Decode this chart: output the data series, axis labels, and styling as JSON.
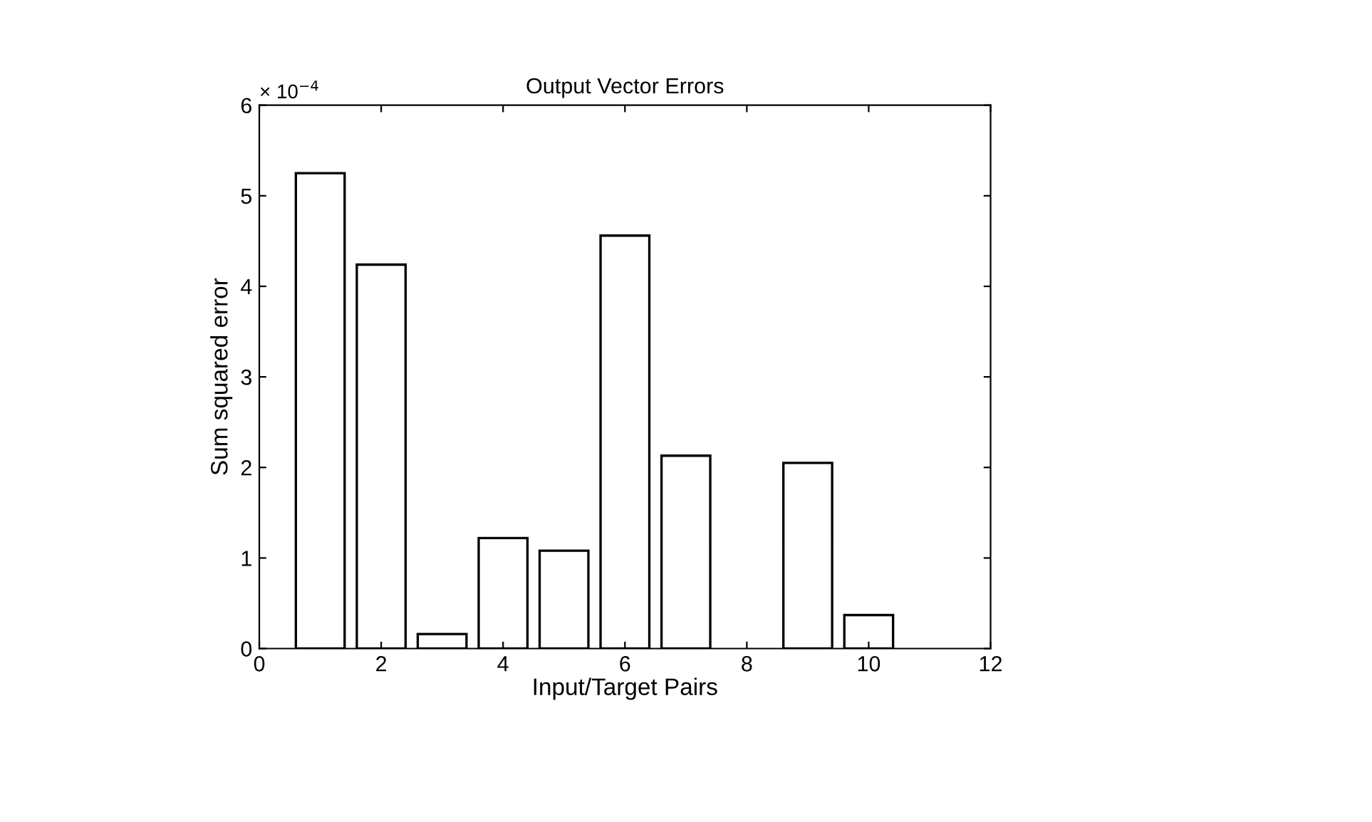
{
  "chart_data": {
    "type": "bar",
    "title": "Output Vector Errors",
    "xlabel": "Input/Target Pairs",
    "ylabel": "Sum squared error",
    "x": [
      1,
      2,
      3,
      4,
      5,
      6,
      7,
      8,
      9,
      10
    ],
    "values": [
      5.25,
      4.24,
      0.16,
      1.22,
      1.08,
      4.56,
      2.13,
      null,
      2.05,
      0.37
    ],
    "color": "#ffffff",
    "xlim": [
      0,
      12
    ],
    "xticks": [
      0,
      2,
      4,
      6,
      8,
      10,
      12
    ],
    "ylim": [
      0,
      6
    ],
    "yticks": [
      0,
      1,
      2,
      3,
      4,
      5,
      6
    ],
    "annotations": [
      "× 10$^{−4}$"
    ],
    "grid": false,
    "legend": false
  }
}
